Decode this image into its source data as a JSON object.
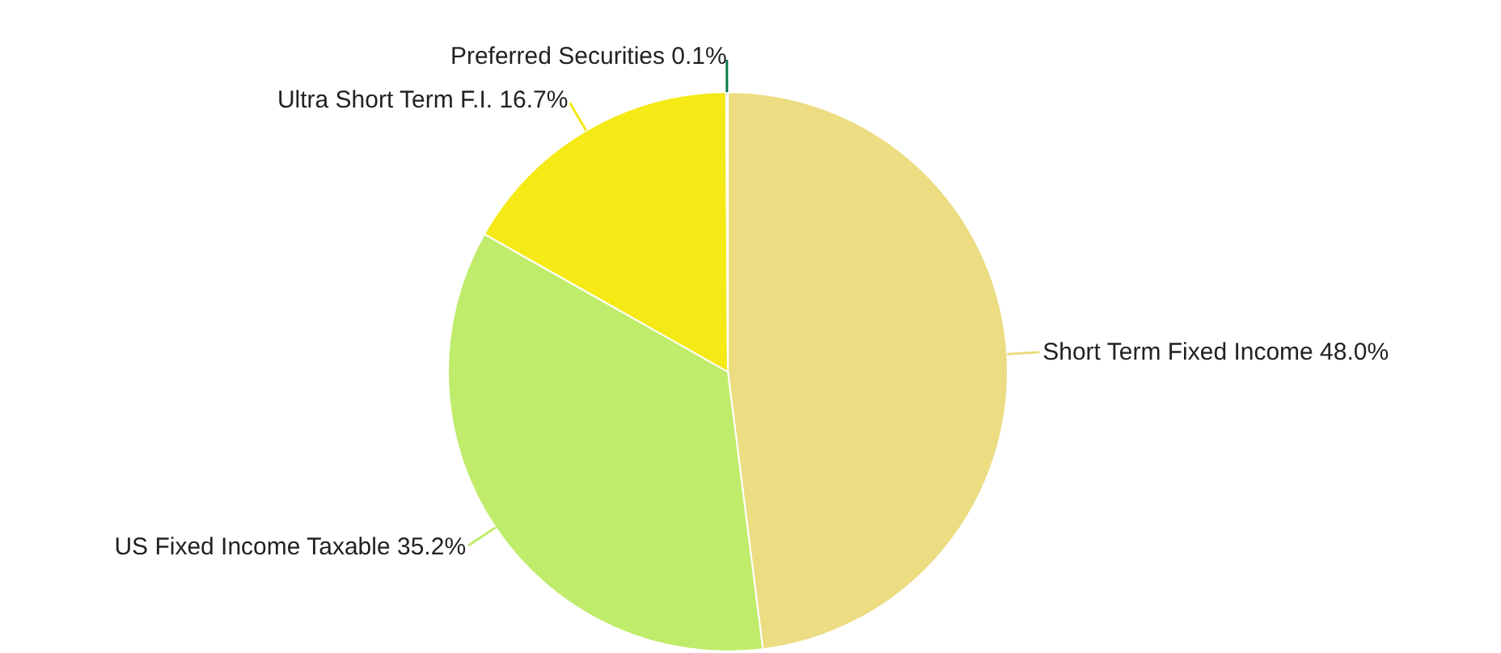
{
  "chart_data": {
    "type": "pie",
    "categories": [
      "Short Term Fixed Income",
      "US Fixed Income Taxable",
      "Ultra Short Term F.I.",
      "Preferred Securities"
    ],
    "values": [
      48.0,
      35.2,
      16.7,
      0.1
    ],
    "value_labels": [
      "48.0%",
      "35.2%",
      "16.7%",
      "0.1%"
    ],
    "colors": [
      "#ecdc82",
      "#c0ec6b",
      "#f5e916",
      "#0a7a4a"
    ]
  }
}
